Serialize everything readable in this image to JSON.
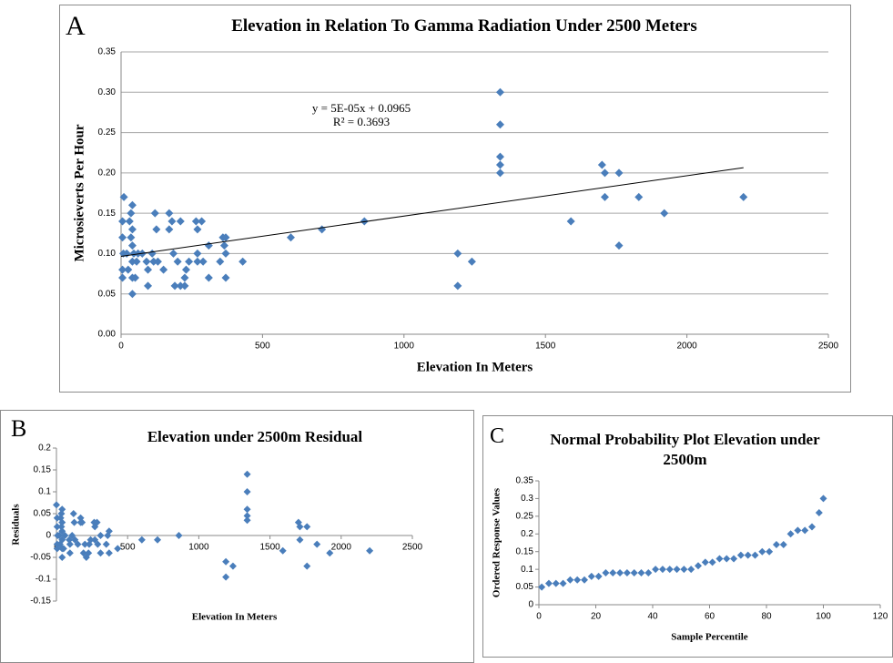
{
  "chart_data": [
    {
      "type": "scatter",
      "label": "A",
      "title": "Elevation in Relation To Gamma Radiation Under 2500 Meters",
      "x_label": "Elevation In Meters",
      "y_label": "Microsieverts Per Hour",
      "color": "#4a7ebb",
      "grid": true,
      "x": [
        10,
        5,
        5,
        8,
        5,
        5,
        20,
        25,
        30,
        35,
        35,
        40,
        40,
        40,
        40,
        40,
        40,
        45,
        50,
        55,
        60,
        75,
        90,
        95,
        95,
        110,
        115,
        120,
        125,
        130,
        150,
        170,
        170,
        180,
        185,
        190,
        200,
        210,
        210,
        225,
        225,
        230,
        240,
        265,
        270,
        270,
        270,
        285,
        290,
        310,
        310,
        350,
        360,
        365,
        370,
        370,
        370,
        430,
        600,
        710,
        860,
        1190,
        1190,
        1240,
        1340,
        1340,
        1340,
        1340,
        1340,
        1590,
        1700,
        1710,
        1710,
        1760,
        1760,
        1830,
        1920,
        2200
      ],
      "values": [
        0.17,
        0.14,
        0.12,
        0.1,
        0.08,
        0.07,
        0.1,
        0.08,
        0.14,
        0.12,
        0.15,
        0.16,
        0.13,
        0.11,
        0.09,
        0.07,
        0.05,
        0.1,
        0.07,
        0.09,
        0.1,
        0.1,
        0.09,
        0.08,
        0.06,
        0.1,
        0.09,
        0.15,
        0.13,
        0.09,
        0.08,
        0.15,
        0.13,
        0.14,
        0.1,
        0.06,
        0.09,
        0.14,
        0.06,
        0.07,
        0.06,
        0.08,
        0.09,
        0.14,
        0.13,
        0.1,
        0.09,
        0.14,
        0.09,
        0.11,
        0.07,
        0.09,
        0.12,
        0.11,
        0.12,
        0.1,
        0.07,
        0.09,
        0.12,
        0.13,
        0.14,
        0.1,
        0.06,
        0.09,
        0.3,
        0.26,
        0.22,
        0.21,
        0.2,
        0.14,
        0.21,
        0.2,
        0.17,
        0.2,
        0.11,
        0.17,
        0.15,
        0.17
      ],
      "xlim": [
        0,
        2500
      ],
      "xticks": [
        0,
        500,
        1000,
        1500,
        2000,
        2500
      ],
      "ylim": [
        0,
        0.35
      ],
      "yticks": [
        {
          "value": 0,
          "label": "0.00"
        },
        {
          "value": 0.05,
          "label": "0.05"
        },
        {
          "value": 0.1,
          "label": "0.10"
        },
        {
          "value": 0.15,
          "label": "0.15"
        },
        {
          "value": 0.2,
          "label": "0.20"
        },
        {
          "value": 0.25,
          "label": "0.25"
        },
        {
          "value": 0.3,
          "label": "0.30"
        },
        {
          "value": 0.35,
          "label": "0.35"
        }
      ],
      "trendline": {
        "equation": "y = 5E-05x + 0.0965",
        "r_squared": "R² = 0.3693",
        "slope": 5e-05,
        "intercept": 0.0965,
        "x": [
          0,
          2200
        ]
      }
    },
    {
      "type": "scatter",
      "label": "B",
      "title": "Elevation under 2500m Residual",
      "x_label": "Elevation In Meters",
      "y_label": "Residuals",
      "color": "#4a7ebb",
      "grid": false,
      "x": [
        0,
        5,
        5,
        8,
        5,
        5,
        20,
        25,
        30,
        35,
        35,
        40,
        40,
        40,
        40,
        40,
        40,
        50,
        60,
        90,
        95,
        95,
        110,
        120,
        125,
        130,
        150,
        170,
        170,
        180,
        190,
        200,
        210,
        225,
        230,
        240,
        265,
        270,
        270,
        285,
        290,
        310,
        310,
        350,
        360,
        370,
        370,
        430,
        600,
        710,
        860,
        1190,
        1190,
        1240,
        1340,
        1340,
        1340,
        1340,
        1340,
        1590,
        1700,
        1710,
        1710,
        1760,
        1760,
        1830,
        1920,
        2200
      ],
      "values": [
        0.07,
        0.04,
        0.02,
        0,
        -0.02,
        -0.03,
        0,
        -0.02,
        0.04,
        0.02,
        0.05,
        0.06,
        0.03,
        0.01,
        -0.01,
        -0.03,
        -0.05,
        -0.03,
        0,
        -0.01,
        -0.02,
        -0.04,
        0,
        0.05,
        0.03,
        -0.01,
        -0.02,
        0.04,
        0.03,
        0.03,
        -0.04,
        -0.02,
        -0.05,
        -0.04,
        -0.02,
        -0.01,
        0.03,
        0.02,
        -0.01,
        0.03,
        -0.02,
        0,
        -0.04,
        -0.02,
        0,
        0.01,
        -0.04,
        -0.03,
        -0.01,
        -0.01,
        0,
        -0.06,
        -0.095,
        -0.07,
        0.14,
        0.1,
        0.06,
        0.045,
        0.035,
        -0.035,
        0.03,
        0.02,
        -0.01,
        0.02,
        -0.07,
        -0.02,
        -0.04,
        -0.035
      ],
      "xlim": [
        0,
        2500
      ],
      "xticks": [
        0,
        500,
        1000,
        1500,
        2000,
        2500
      ],
      "ylim": [
        -0.15,
        0.2
      ],
      "yticks": [
        -0.15,
        -0.1,
        -0.05,
        0,
        0.05,
        0.1,
        0.15,
        0.2
      ]
    },
    {
      "type": "scatter",
      "label": "C",
      "title": "Normal Probability Plot Elevation under 2500m",
      "x_label": "Sample Percentile",
      "y_label": "Ordered Response Values",
      "color": "#4a7ebb",
      "grid": false,
      "x": [
        1,
        3.5,
        6,
        8.5,
        11,
        13.5,
        16,
        18.5,
        21,
        23.5,
        26,
        28.5,
        31,
        33.5,
        36,
        38.5,
        41,
        43.5,
        46,
        48.5,
        51,
        53.5,
        56,
        58.5,
        61,
        63.5,
        66,
        68.5,
        71,
        73.5,
        76,
        78.5,
        81,
        83.5,
        86,
        88.5,
        91,
        93.5,
        96,
        98.5,
        100
      ],
      "values": [
        0.05,
        0.06,
        0.06,
        0.06,
        0.07,
        0.07,
        0.07,
        0.08,
        0.08,
        0.09,
        0.09,
        0.09,
        0.09,
        0.09,
        0.09,
        0.09,
        0.1,
        0.1,
        0.1,
        0.1,
        0.1,
        0.1,
        0.11,
        0.12,
        0.12,
        0.13,
        0.13,
        0.13,
        0.14,
        0.14,
        0.14,
        0.15,
        0.15,
        0.17,
        0.17,
        0.2,
        0.21,
        0.21,
        0.22,
        0.26,
        0.3
      ],
      "xlim": [
        0,
        120
      ],
      "xticks": [
        0,
        20,
        40,
        60,
        80,
        100,
        120
      ],
      "ylim": [
        0,
        0.35
      ],
      "yticks": [
        0,
        0.05,
        0.1,
        0.15,
        0.2,
        0.25,
        0.3,
        0.35
      ]
    }
  ]
}
